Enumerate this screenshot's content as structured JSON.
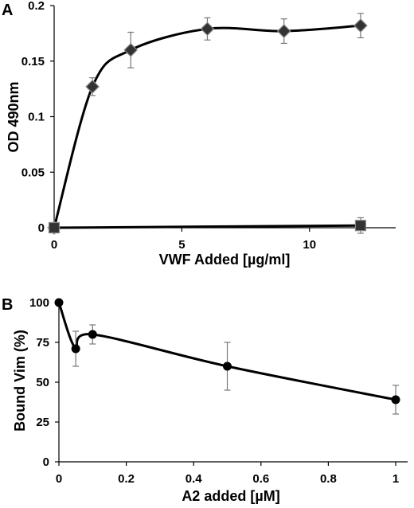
{
  "chart_data": [
    {
      "panel": "A",
      "type": "line",
      "xlabel": "VWF Added [µg/ml]",
      "ylabel": "OD 490nm",
      "xlim": [
        0,
        13
      ],
      "ylim": [
        0,
        0.2
      ],
      "x_ticks": [
        0,
        5,
        10
      ],
      "y_ticks": [
        0,
        0.05,
        0.1,
        0.15,
        0.2
      ],
      "x_tick_labels": [
        "0",
        "5",
        "10"
      ],
      "y_tick_labels": [
        "0",
        "0.05",
        "0.1",
        "0.15",
        "0.2"
      ],
      "grid": false,
      "series": [
        {
          "marker": "diamond",
          "smooth": true,
          "x": [
            0,
            1.5,
            3,
            6,
            9,
            12
          ],
          "y": [
            0,
            0.127,
            0.16,
            0.179,
            0.177,
            0.182
          ],
          "error": [
            0,
            0.008,
            0.016,
            0.01,
            0.011,
            0.011
          ]
        },
        {
          "marker": "square",
          "smooth": false,
          "x": [
            0,
            12
          ],
          "y": [
            0,
            0.002
          ],
          "error": [
            0,
            0.007
          ]
        }
      ]
    },
    {
      "panel": "B",
      "type": "line",
      "xlabel": "A2 added [µM]",
      "ylabel": "Bound Vim (%)",
      "xlim": [
        0,
        1
      ],
      "ylim": [
        0,
        100
      ],
      "x_ticks": [
        0,
        0.2,
        0.4,
        0.6,
        0.8,
        1
      ],
      "y_ticks": [
        0,
        25,
        50,
        75,
        100
      ],
      "x_tick_labels": [
        "0",
        "0.2",
        "0.4",
        "0.6",
        "0.8",
        "1"
      ],
      "y_tick_labels": [
        "0",
        "25",
        "50",
        "75",
        "100"
      ],
      "grid": false,
      "series": [
        {
          "marker": "circle",
          "smooth": true,
          "x": [
            0,
            0.05,
            0.1,
            0.5,
            1
          ],
          "y": [
            100,
            71,
            80,
            60,
            39
          ],
          "error": [
            0,
            11,
            6,
            15,
            9
          ]
        }
      ]
    }
  ]
}
